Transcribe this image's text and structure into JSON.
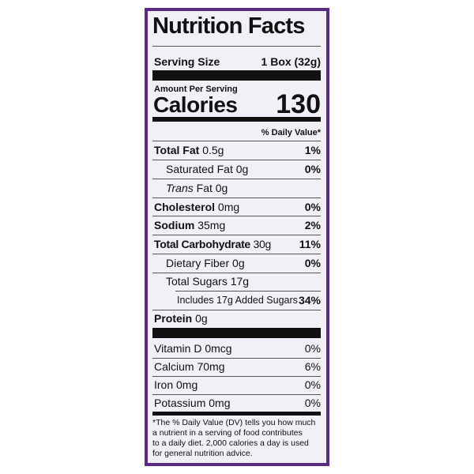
{
  "title": "Nutrition Facts",
  "serving": {
    "label": "Serving Size",
    "value": "1 Box (32g)"
  },
  "amount_per_serving": "Amount Per Serving",
  "calories": {
    "label": "Calories",
    "value": "130"
  },
  "daily_value_header": "% Daily Value*",
  "nutrients": [
    {
      "name": "Total Fat",
      "amount": "0.5g",
      "dv": "1%"
    },
    {
      "name": "Saturated Fat",
      "amount": "0g",
      "dv": "0%"
    },
    {
      "name_italic": "Trans",
      "name": "Fat",
      "amount": "0g"
    },
    {
      "name": "Cholesterol",
      "amount": "0mg",
      "dv": "0%"
    },
    {
      "name": "Sodium",
      "amount": "35mg",
      "dv": "2%"
    },
    {
      "name": "Total Carbohydrate",
      "amount": "30g",
      "dv": "11%"
    },
    {
      "name": "Dietary Fiber",
      "amount": "0g",
      "dv": "0%"
    },
    {
      "name": "Total Sugars",
      "amount": "17g"
    },
    {
      "name": "Includes 17g Added Sugars",
      "dv": "34%"
    },
    {
      "name": "Protein",
      "amount": "0g"
    }
  ],
  "vitamins": [
    {
      "name": "Vitamin D",
      "amount": "0mcg",
      "dv": "0%"
    },
    {
      "name": "Calcium",
      "amount": "70mg",
      "dv": "6%"
    },
    {
      "name": "Iron",
      "amount": "0mg",
      "dv": "0%"
    },
    {
      "name": "Potassium",
      "amount": "0mg",
      "dv": "0%"
    }
  ],
  "footnote": [
    "*The % Daily Value (DV) tells you how much",
    "a nutrient in a serving of food contributes",
    "to a daily diet. 2,000 calories a day is used",
    "for general nutrition advice."
  ]
}
